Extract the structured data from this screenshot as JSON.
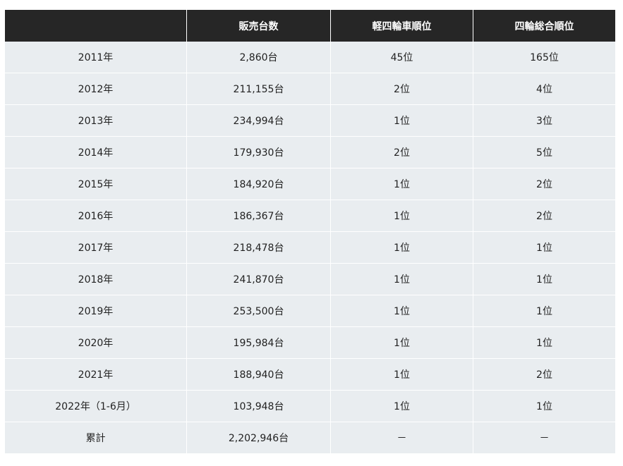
{
  "table": {
    "headers": [
      "",
      "販売台数",
      "軽四輪車順位",
      "四輪総合順位"
    ],
    "rows": [
      [
        "2011年",
        "2,860台",
        "45位",
        "165位"
      ],
      [
        "2012年",
        "211,155台",
        "2位",
        "4位"
      ],
      [
        "2013年",
        "234,994台",
        "1位",
        "3位"
      ],
      [
        "2014年",
        "179,930台",
        "2位",
        "5位"
      ],
      [
        "2015年",
        "184,920台",
        "1位",
        "2位"
      ],
      [
        "2016年",
        "186,367台",
        "1位",
        "2位"
      ],
      [
        "2017年",
        "218,478台",
        "1位",
        "1位"
      ],
      [
        "2018年",
        "241,870台",
        "1位",
        "1位"
      ],
      [
        "2019年",
        "253,500台",
        "1位",
        "1位"
      ],
      [
        "2020年",
        "195,984台",
        "1位",
        "1位"
      ],
      [
        "2021年",
        "188,940台",
        "1位",
        "2位"
      ],
      [
        "2022年（1-6月）",
        "103,948台",
        "1位",
        "1位"
      ],
      [
        "累計",
        "2,202,946台",
        "－",
        "－"
      ]
    ]
  }
}
